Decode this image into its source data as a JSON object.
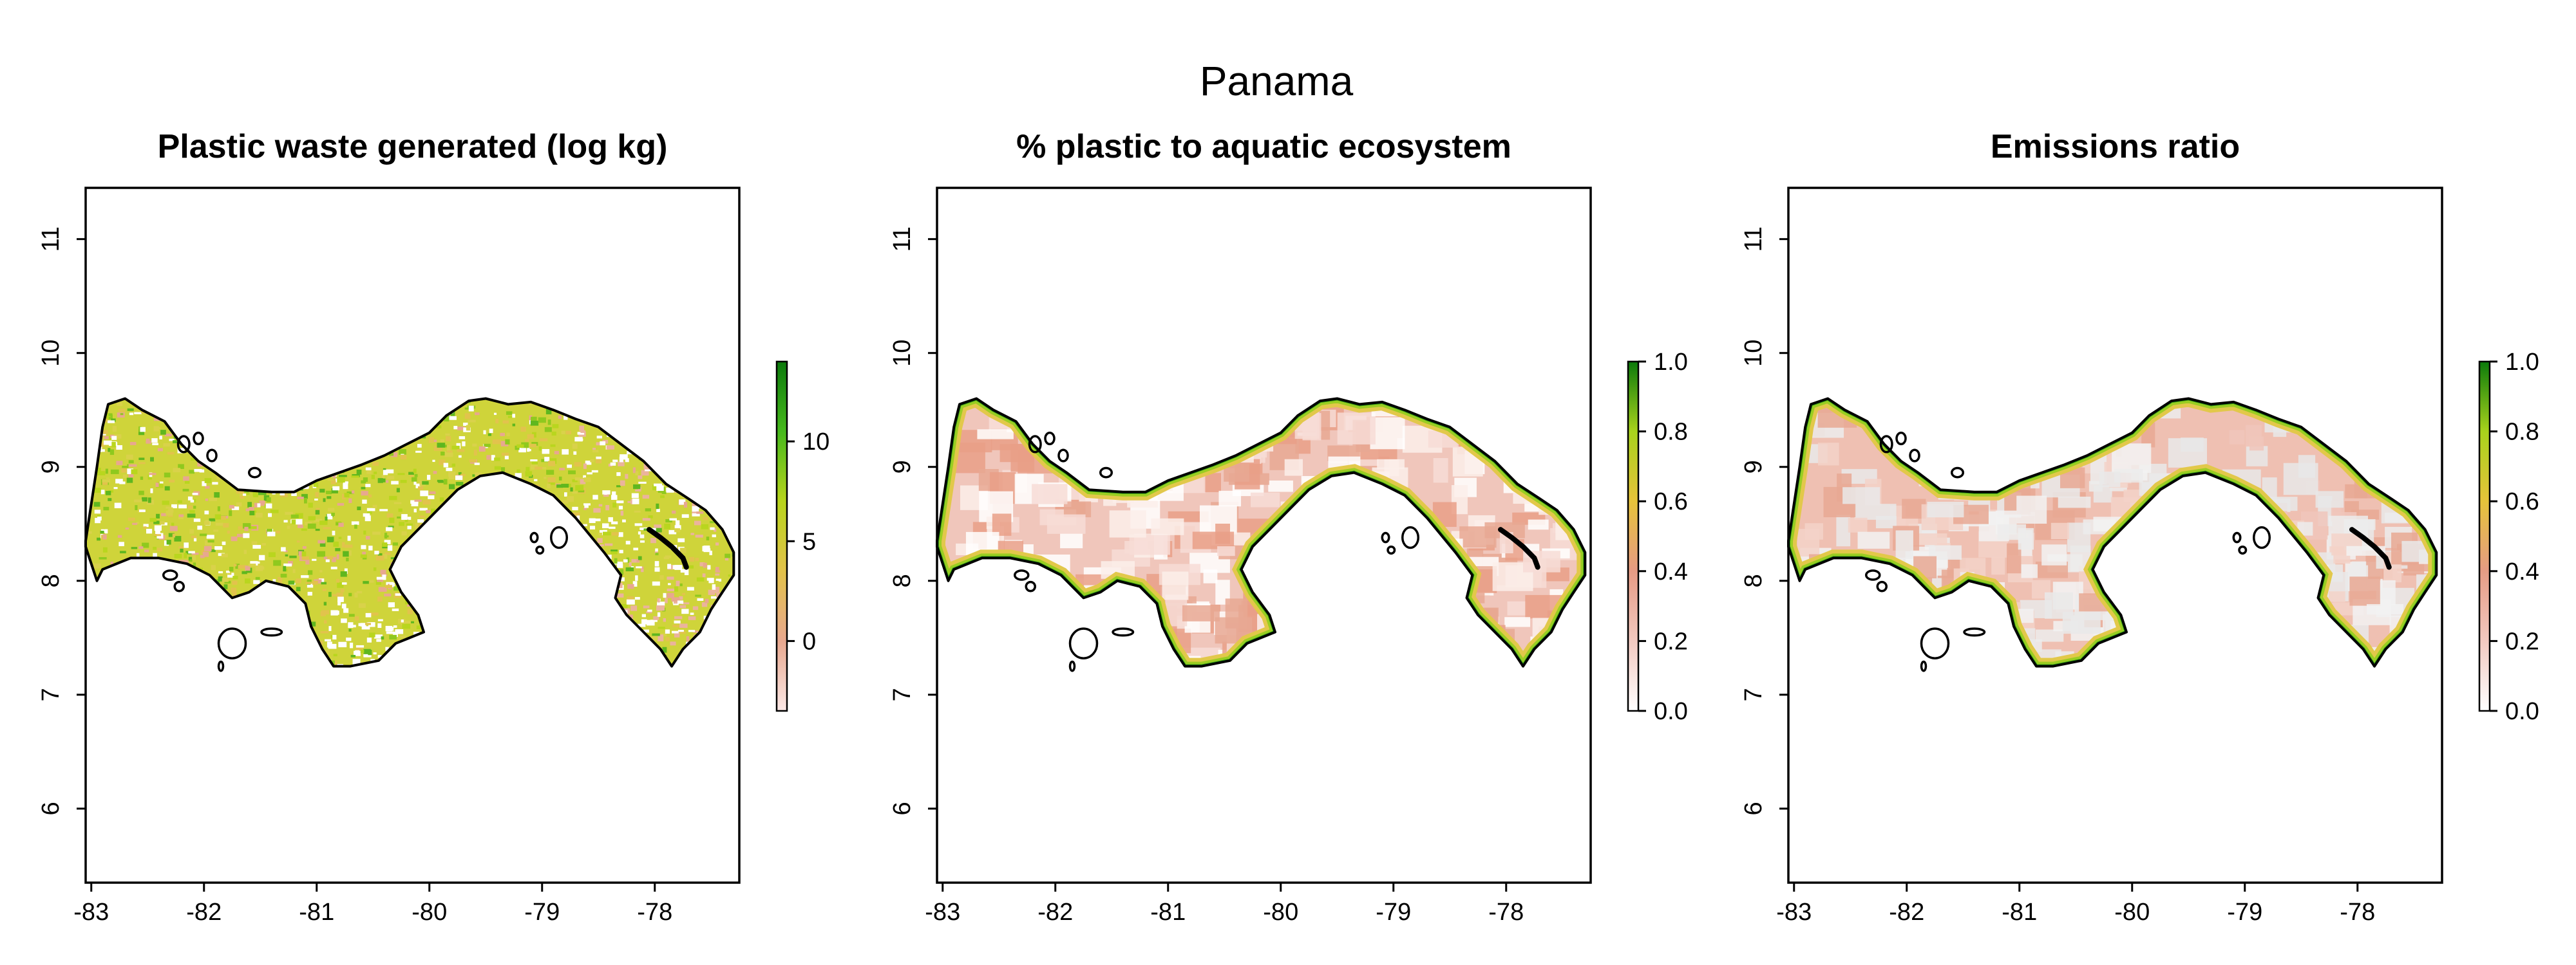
{
  "figure": {
    "title": "Panama"
  },
  "axes": {
    "x_ticks": [
      -83,
      -82,
      -81,
      -80,
      -79,
      -78
    ],
    "y_ticks": [
      6,
      7,
      8,
      9,
      10,
      11
    ],
    "xlim": [
      -83.05,
      -77.25
    ],
    "ylim": [
      5.35,
      11.45
    ]
  },
  "panels": [
    {
      "title": "Plastic waste generated (log kg)",
      "colorbar": {
        "min": -3.5,
        "max": 14,
        "ticks": [
          0,
          5,
          10
        ],
        "colors": [
          "#fbe8e6",
          "#e8a88f",
          "#e2c24a",
          "#b8d41c",
          "#46b91c",
          "#0c7a0c"
        ]
      },
      "fill_style": "speckled-green-yellow"
    },
    {
      "title": "% plastic to aquatic ecosystem",
      "colorbar": {
        "min": 0,
        "max": 1,
        "ticks": [
          "0.0",
          "0.2",
          "0.4",
          "0.6",
          "0.8",
          "1.0"
        ],
        "colors": [
          "#ffffff",
          "#f2c9c0",
          "#e69b84",
          "#e6c33a",
          "#a8d21c",
          "#0b7a0b"
        ]
      },
      "fill_style": "pale-salmon-green-coast"
    },
    {
      "title": "Emissions ratio",
      "colorbar": {
        "min": 0,
        "max": 1,
        "ticks": [
          "0.0",
          "0.2",
          "0.4",
          "0.6",
          "0.8",
          "1.0"
        ],
        "colors": [
          "#ffffff",
          "#f2c9c0",
          "#e69b84",
          "#e6c33a",
          "#a8d21c",
          "#0b7a0b"
        ]
      },
      "fill_style": "salmon-grey-green-coast"
    }
  ]
}
